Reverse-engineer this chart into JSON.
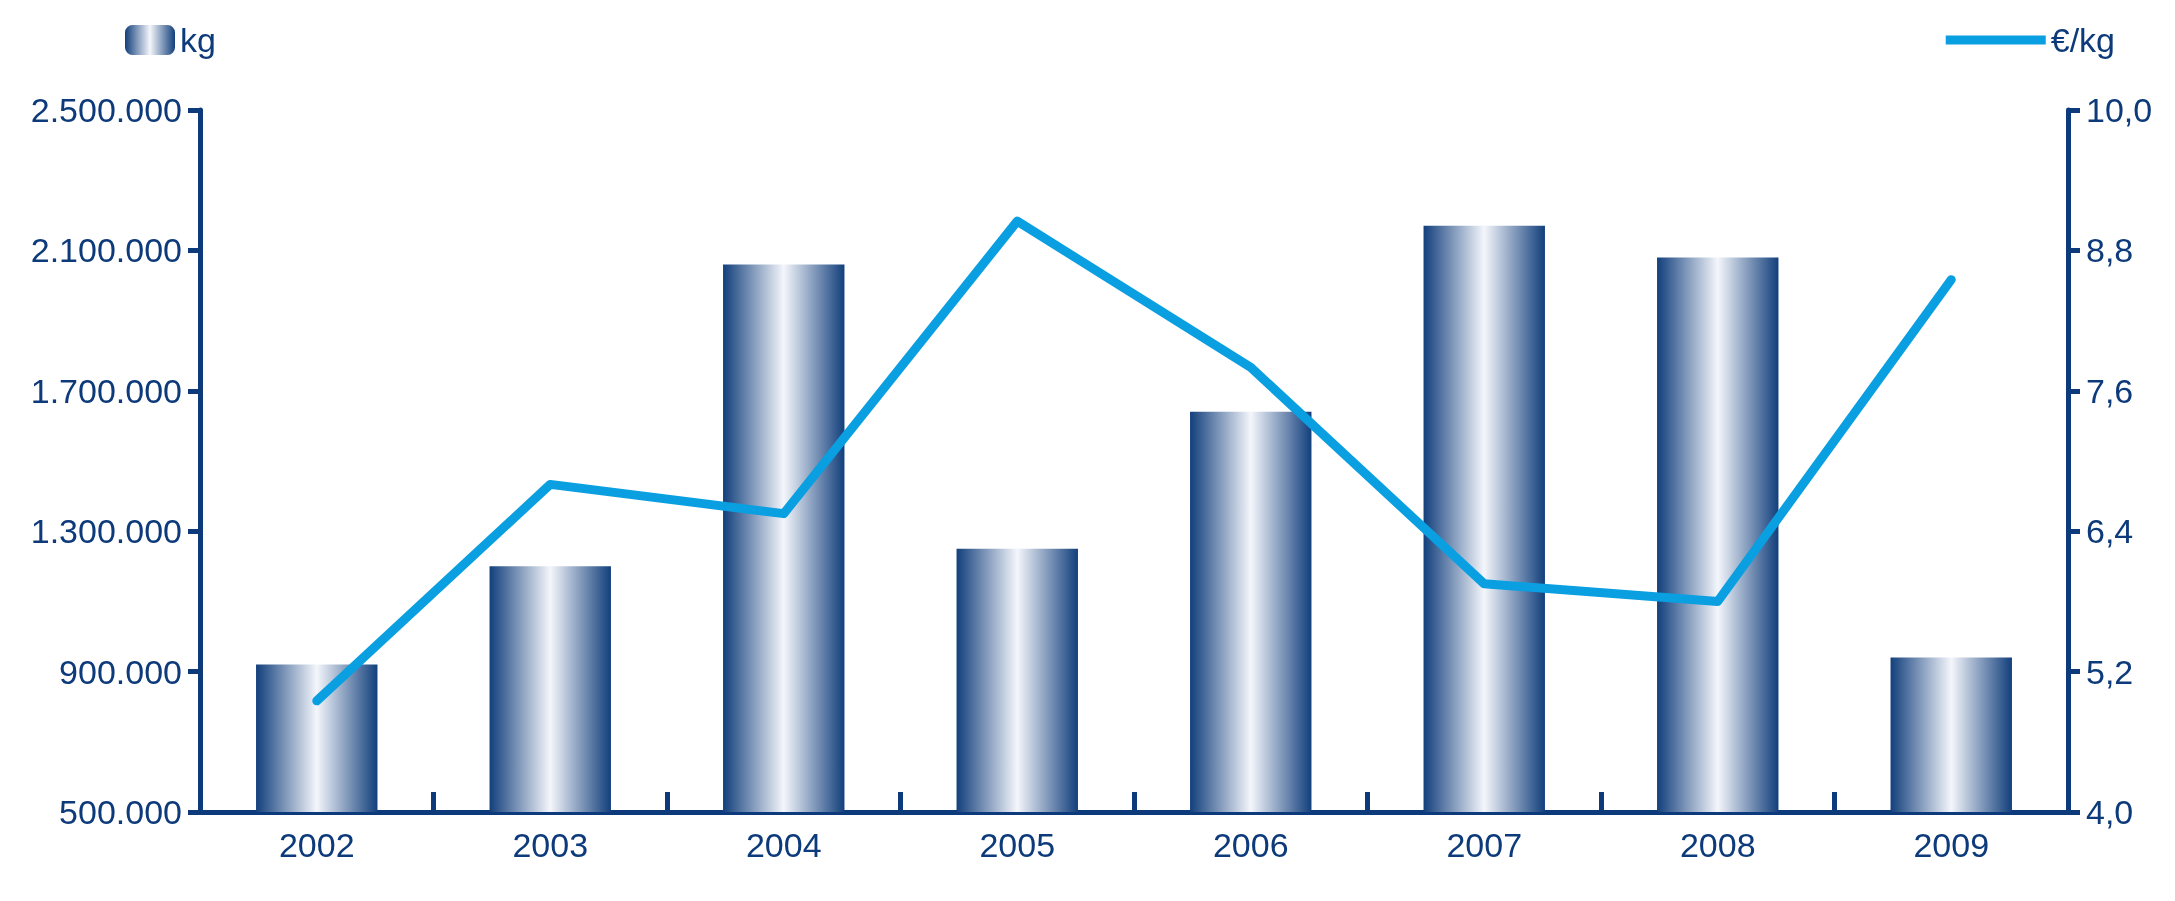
{
  "chart_data": {
    "type": "bar",
    "categories": [
      "2002",
      "2003",
      "2004",
      "2005",
      "2006",
      "2007",
      "2008",
      "2009"
    ],
    "series": [
      {
        "name": "kg",
        "color": "#123f7c",
        "values": [
          920000,
          1200000,
          2060000,
          1250000,
          1640000,
          2170000,
          2080000,
          940000
        ]
      },
      {
        "name": "€/kg",
        "type": "line",
        "axis": "y2",
        "color": "#0a9fe0",
        "values": [
          4.95,
          6.8,
          6.55,
          9.05,
          7.8,
          5.95,
          5.8,
          8.55
        ]
      }
    ],
    "ylim": [
      500000,
      2500000
    ],
    "yticks": [
      {
        "value": 500000,
        "label": "500.000"
      },
      {
        "value": 900000,
        "label": "900.000"
      },
      {
        "value": 1300000,
        "label": "1.300.000"
      },
      {
        "value": 1700000,
        "label": "1.700.000"
      },
      {
        "value": 2100000,
        "label": "2.100.000"
      },
      {
        "value": 2500000,
        "label": "2.500.000"
      }
    ],
    "y2lim": [
      4,
      10
    ],
    "y2ticks": [
      {
        "value": 4,
        "label": "4,0"
      },
      {
        "value": 5.2,
        "label": "5,2"
      },
      {
        "value": 6.4,
        "label": "6,4"
      },
      {
        "value": 7.6,
        "label": "7,6"
      },
      {
        "value": 8.8,
        "label": "8,8"
      },
      {
        "value": 10,
        "label": "10,0"
      }
    ],
    "legend": "top",
    "grid": false,
    "marker": "none",
    "line_style": "solid"
  }
}
